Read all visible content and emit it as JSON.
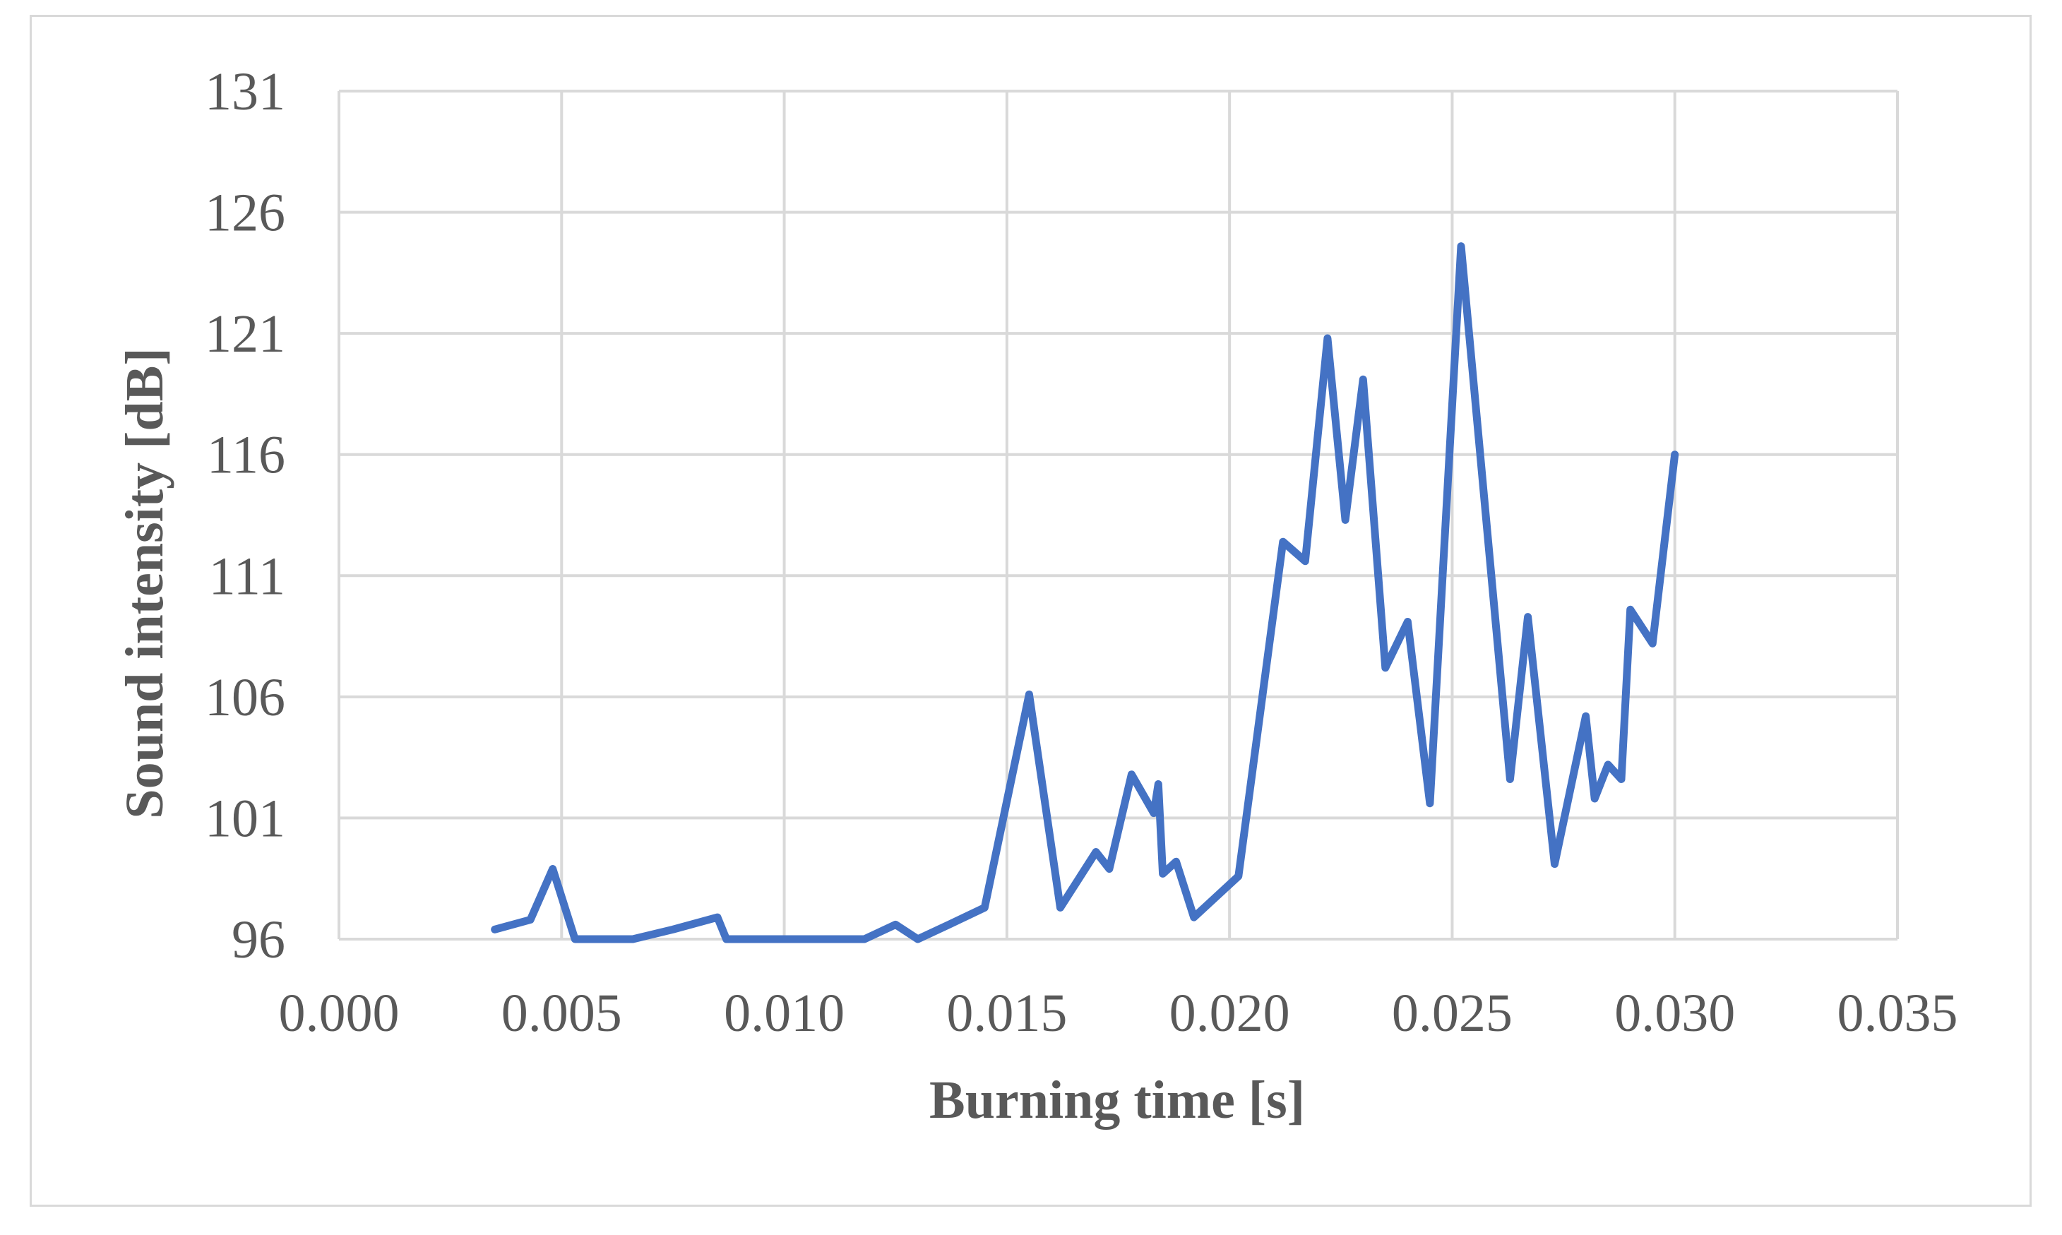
{
  "chart_data": {
    "type": "line",
    "title": "",
    "xlabel": "Burning time [s]",
    "ylabel": "Sound intensity [dB]",
    "xlim": [
      0.0,
      0.035
    ],
    "ylim": [
      96,
      131
    ],
    "x_ticks": [
      "0.000",
      "0.005",
      "0.010",
      "0.015",
      "0.020",
      "0.025",
      "0.030",
      "0.035"
    ],
    "y_ticks": [
      "96",
      "101",
      "106",
      "111",
      "116",
      "121",
      "126",
      "131"
    ],
    "grid": true,
    "legend": "none",
    "series": [
      {
        "color": "#4472c4",
        "x": [
          0.0035,
          0.0043,
          0.0048,
          0.0053,
          0.0066,
          0.0075,
          0.0085,
          0.0087,
          0.01,
          0.011,
          0.0118,
          0.0125,
          0.013,
          0.0137,
          0.0145,
          0.0155,
          0.0162,
          0.017,
          0.0173,
          0.0178,
          0.0183,
          0.0184,
          0.0185,
          0.0188,
          0.0192,
          0.0202,
          0.0212,
          0.0217,
          0.0222,
          0.0226,
          0.023,
          0.0235,
          0.024,
          0.0245,
          0.0252,
          0.0263,
          0.0267,
          0.0273,
          0.028,
          0.0282,
          0.0285,
          0.0288,
          0.029,
          0.0295,
          0.03
        ],
        "y": [
          96.4,
          96.8,
          98.9,
          96.0,
          96.0,
          96.4,
          96.9,
          96.0,
          96.0,
          96.0,
          96.0,
          96.6,
          96.0,
          96.6,
          97.3,
          106.1,
          97.3,
          99.6,
          98.9,
          102.8,
          101.2,
          102.4,
          98.7,
          99.2,
          96.9,
          98.6,
          112.4,
          111.6,
          120.8,
          113.3,
          119.1,
          107.2,
          109.1,
          101.6,
          124.6,
          102.6,
          109.3,
          99.1,
          105.2,
          101.8,
          103.2,
          102.6,
          109.6,
          108.2,
          116.0
        ]
      }
    ]
  }
}
